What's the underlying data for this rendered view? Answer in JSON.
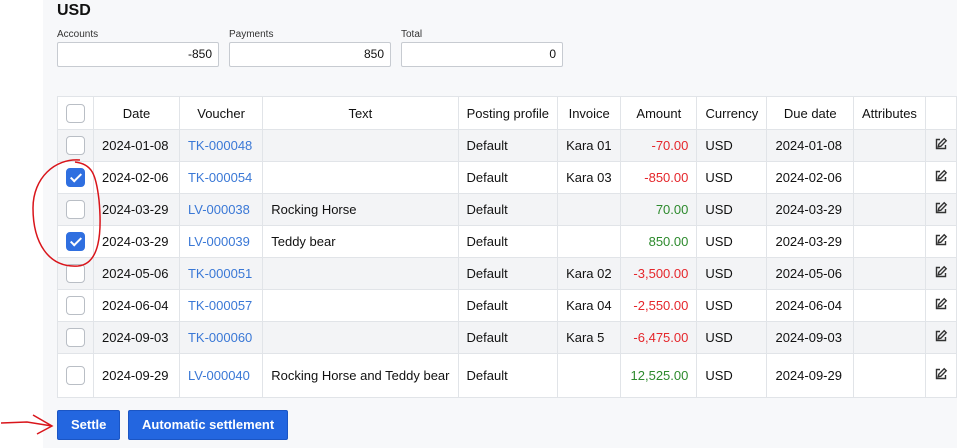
{
  "title": "USD",
  "summary": [
    {
      "label": "Accounts",
      "value": "-850"
    },
    {
      "label": "Payments",
      "value": "850"
    },
    {
      "label": "Total",
      "value": "0"
    }
  ],
  "columns": [
    "",
    "Date",
    "Voucher",
    "Text",
    "Posting profile",
    "Invoice",
    "Amount",
    "Currency",
    "Due date",
    "Attributes",
    ""
  ],
  "rows": [
    {
      "checked": false,
      "date": "2024-01-08",
      "voucher": "TK-000048",
      "text": "",
      "profile": "Default",
      "invoice": "Kara 01",
      "amount": "-70.00",
      "currency": "USD",
      "due": "2024-01-08",
      "attributes": ""
    },
    {
      "checked": true,
      "date": "2024-02-06",
      "voucher": "TK-000054",
      "text": "",
      "profile": "Default",
      "invoice": "Kara 03",
      "amount": "-850.00",
      "currency": "USD",
      "due": "2024-02-06",
      "attributes": ""
    },
    {
      "checked": false,
      "date": "2024-03-29",
      "voucher": "LV-000038",
      "text": "Rocking Horse",
      "profile": "Default",
      "invoice": "",
      "amount": "70.00",
      "currency": "USD",
      "due": "2024-03-29",
      "attributes": ""
    },
    {
      "checked": true,
      "date": "2024-03-29",
      "voucher": "LV-000039",
      "text": "Teddy bear",
      "profile": "Default",
      "invoice": "",
      "amount": "850.00",
      "currency": "USD",
      "due": "2024-03-29",
      "attributes": ""
    },
    {
      "checked": false,
      "date": "2024-05-06",
      "voucher": "TK-000051",
      "text": "",
      "profile": "Default",
      "invoice": "Kara 02",
      "amount": "-3,500.00",
      "currency": "USD",
      "due": "2024-05-06",
      "attributes": ""
    },
    {
      "checked": false,
      "date": "2024-06-04",
      "voucher": "TK-000057",
      "text": "",
      "profile": "Default",
      "invoice": "Kara 04",
      "amount": "-2,550.00",
      "currency": "USD",
      "due": "2024-06-04",
      "attributes": ""
    },
    {
      "checked": false,
      "date": "2024-09-03",
      "voucher": "TK-000060",
      "text": "",
      "profile": "Default",
      "invoice": "Kara 5",
      "amount": "-6,475.00",
      "currency": "USD",
      "due": "2024-09-03",
      "attributes": ""
    },
    {
      "checked": false,
      "date": "2024-09-29",
      "voucher": "LV-000040",
      "text": "Rocking Horse and Teddy bear",
      "profile": "Default",
      "invoice": "",
      "amount": "12,525.00",
      "currency": "USD",
      "due": "2024-09-29",
      "attributes": ""
    }
  ],
  "buttons": {
    "settle": "Settle",
    "auto": "Automatic settlement"
  },
  "icons": {
    "row_action": "edit-icon"
  },
  "colors": {
    "accent": "#2366e0",
    "negative": "#e5262b",
    "positive": "#2d8a2d",
    "link": "#3a78d6",
    "annotation": "#d9151b"
  }
}
